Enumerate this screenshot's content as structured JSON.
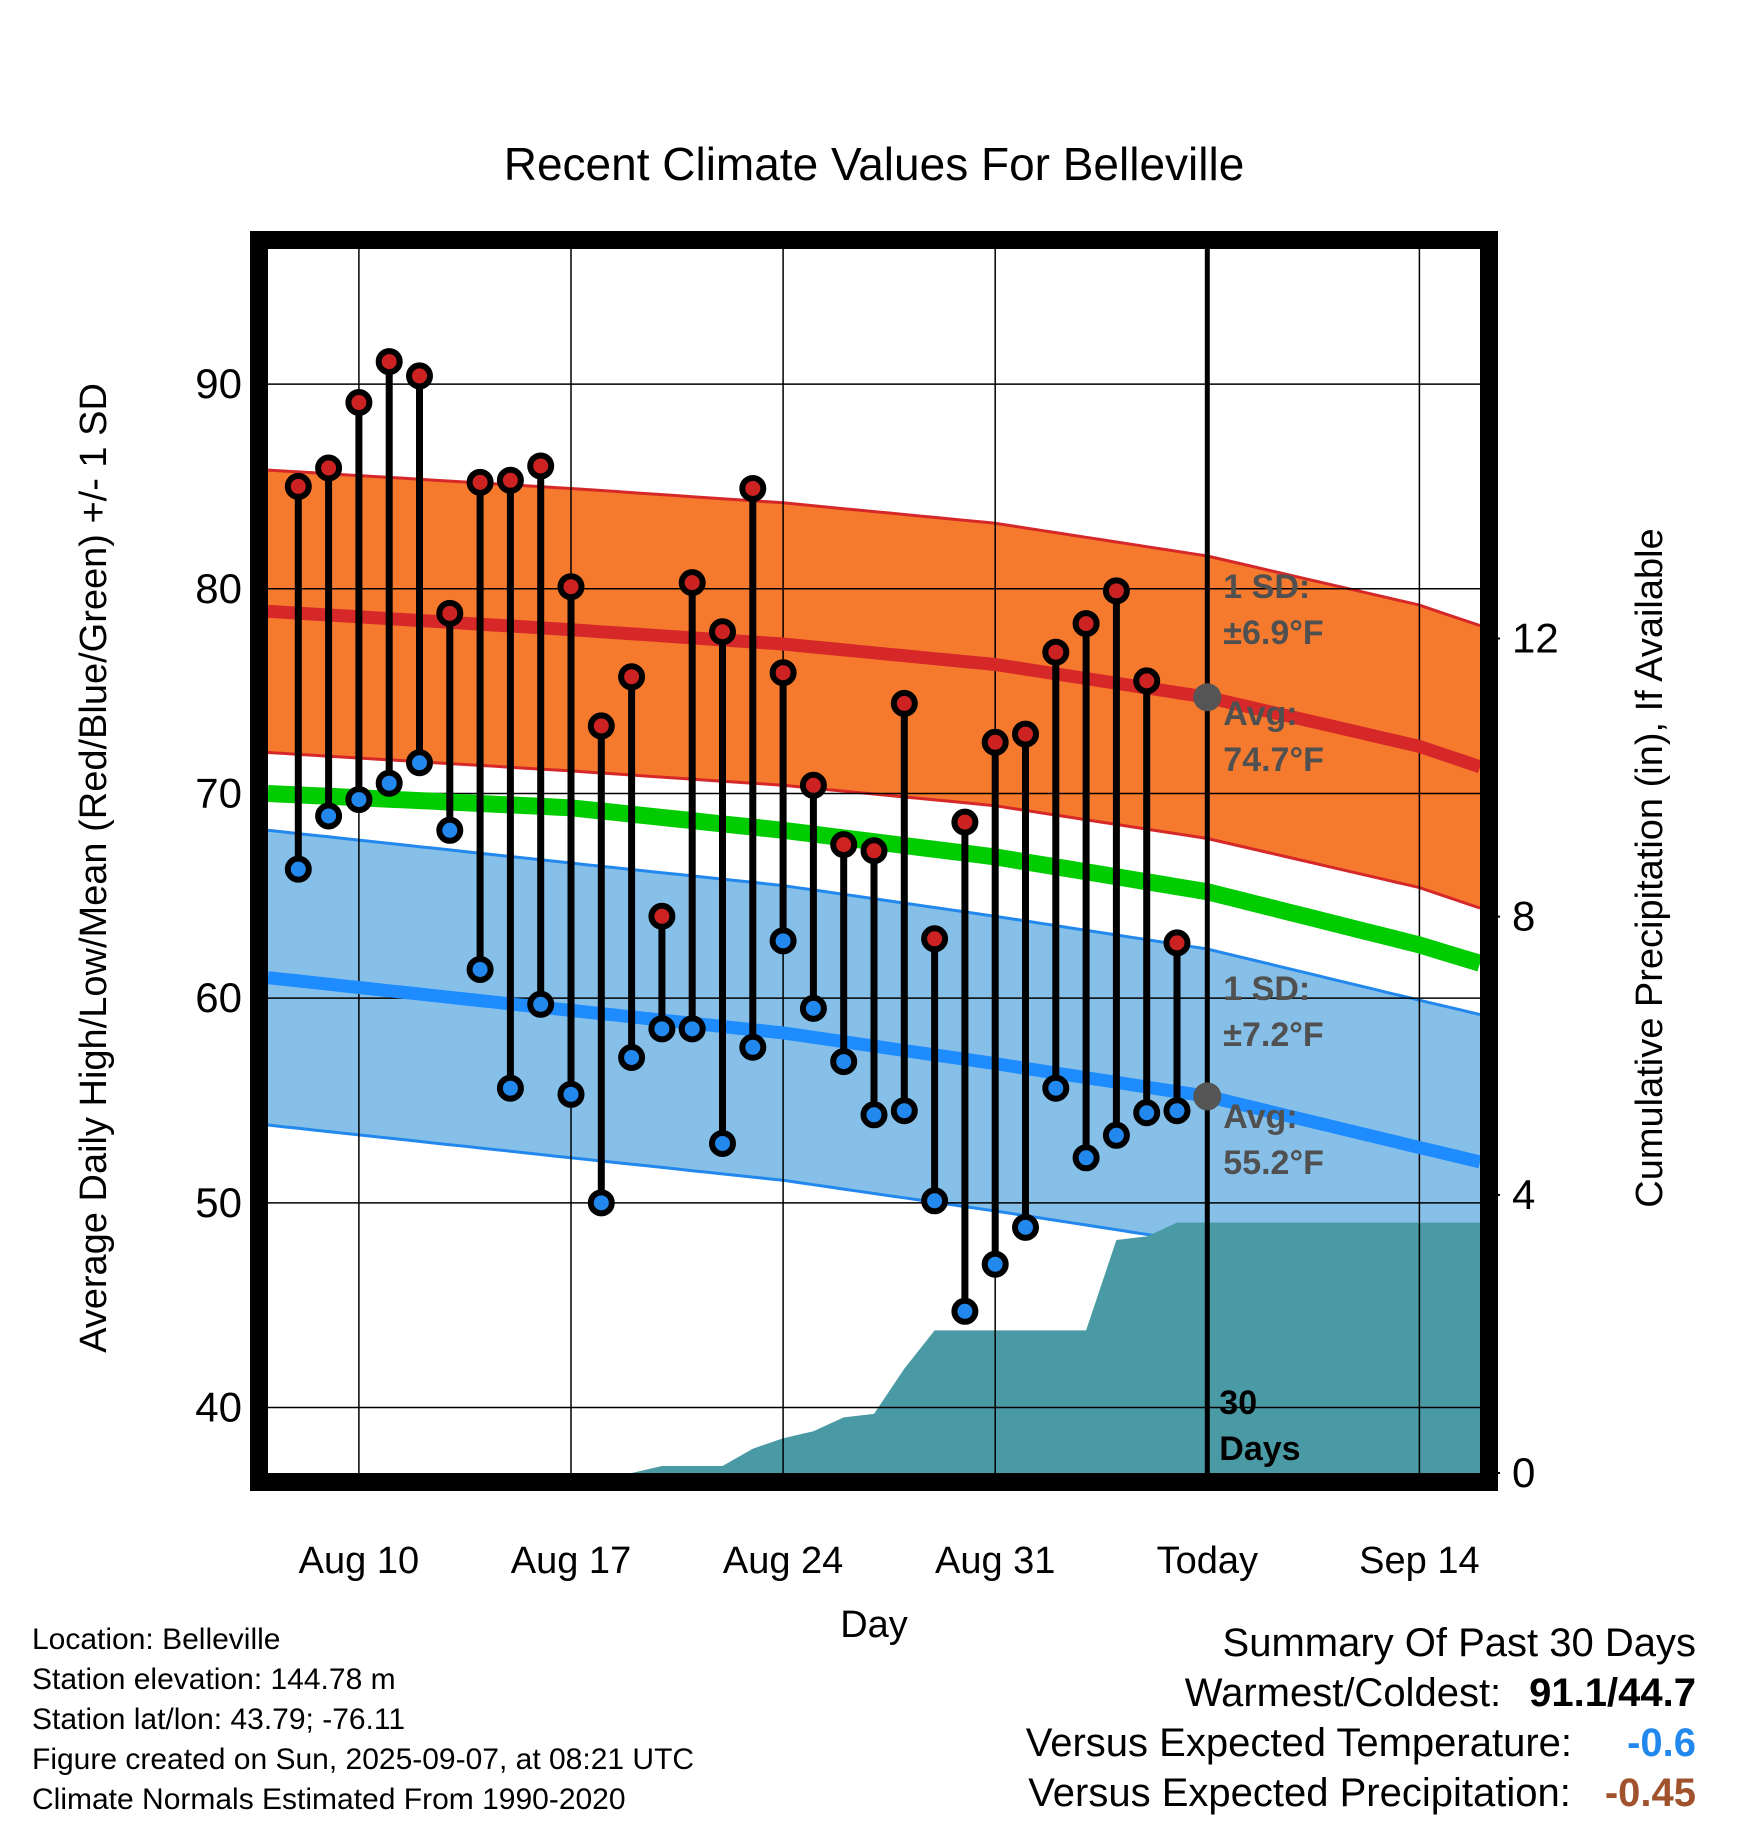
{
  "chart_data": {
    "type": "line",
    "title": "Recent Climate Values For Belleville",
    "xlabel": "Day",
    "ylabel": "Average Daily High/Low/Mean (Red/Blue/Green) +/- 1 SD",
    "y2label": "Cumulative Precipitation (in), If Available",
    "x_axis": {
      "range": [
        "Aug 7",
        "Sep 16"
      ],
      "ticks": [
        "Aug 10",
        "Aug 17",
        "Aug 24",
        "Aug 31",
        "Today",
        "Sep 14"
      ]
    },
    "ylim": [
      36.8,
      96.6
    ],
    "yticks": [
      40,
      50,
      60,
      70,
      80,
      90
    ],
    "y2lim": [
      0,
      17.6
    ],
    "y2ticks": [
      0,
      4,
      8,
      12
    ],
    "grid": true,
    "series": [
      {
        "name": "High",
        "color": "#cc2222",
        "x": [
          "Aug 8",
          "Aug 9",
          "Aug 10",
          "Aug 11",
          "Aug 12",
          "Aug 13",
          "Aug 14",
          "Aug 15",
          "Aug 16",
          "Aug 17",
          "Aug 18",
          "Aug 19",
          "Aug 20",
          "Aug 21",
          "Aug 22",
          "Aug 23",
          "Aug 24",
          "Aug 25",
          "Aug 26",
          "Aug 27",
          "Aug 28",
          "Aug 29",
          "Aug 30",
          "Aug 31",
          "Sep 1",
          "Sep 2",
          "Sep 3",
          "Sep 4",
          "Sep 5",
          "Sep 6"
        ],
        "values": [
          85.0,
          85.9,
          89.1,
          91.1,
          90.4,
          78.8,
          85.2,
          85.3,
          86.0,
          80.1,
          73.3,
          75.7,
          64.0,
          80.3,
          77.9,
          84.9,
          75.9,
          70.4,
          67.5,
          67.2,
          74.4,
          62.9,
          68.6,
          72.5,
          72.9,
          76.9,
          78.3,
          79.9,
          75.5,
          62.7
        ]
      },
      {
        "name": "Low",
        "color": "#2288ee",
        "x": [
          "Aug 8",
          "Aug 9",
          "Aug 10",
          "Aug 11",
          "Aug 12",
          "Aug 13",
          "Aug 14",
          "Aug 15",
          "Aug 16",
          "Aug 17",
          "Aug 18",
          "Aug 19",
          "Aug 20",
          "Aug 21",
          "Aug 22",
          "Aug 23",
          "Aug 24",
          "Aug 25",
          "Aug 26",
          "Aug 27",
          "Aug 28",
          "Aug 29",
          "Aug 30",
          "Aug 31",
          "Sep 1",
          "Sep 2",
          "Sep 3",
          "Sep 4",
          "Sep 5",
          "Sep 6"
        ],
        "values": [
          66.3,
          68.9,
          69.7,
          70.5,
          71.5,
          68.2,
          61.4,
          55.6,
          59.7,
          55.3,
          50.0,
          57.1,
          58.5,
          58.5,
          52.9,
          57.6,
          62.8,
          59.5,
          56.9,
          54.3,
          54.5,
          50.1,
          44.7,
          47.0,
          48.8,
          55.6,
          52.2,
          53.3,
          54.4,
          54.5
        ]
      },
      {
        "name": "Normal High",
        "color": "#cc2222",
        "x": [
          "Aug 7",
          "Aug 17",
          "Aug 24",
          "Aug 31",
          "Sep 7",
          "Sep 14",
          "Sep 16"
        ],
        "values": [
          78.9,
          78.0,
          77.3,
          76.3,
          74.7,
          72.3,
          71.3
        ],
        "sd": 6.9
      },
      {
        "name": "Normal Low",
        "color": "#2288ee",
        "x": [
          "Aug 7",
          "Aug 17",
          "Aug 24",
          "Aug 31",
          "Sep 7",
          "Sep 14",
          "Sep 16"
        ],
        "values": [
          61.0,
          59.4,
          58.3,
          56.8,
          55.2,
          52.7,
          52.0
        ],
        "sd": 7.2
      },
      {
        "name": "Normal Mean",
        "color": "#00cc00",
        "x": [
          "Aug 7",
          "Aug 17",
          "Aug 24",
          "Aug 31",
          "Sep 7",
          "Sep 14",
          "Sep 16"
        ],
        "values": [
          70.0,
          69.3,
          68.2,
          66.9,
          65.2,
          62.6,
          61.7
        ]
      },
      {
        "name": "Cumulative Precipitation",
        "color": "#4a9aa5",
        "x": [
          "Aug 7",
          "Aug 18",
          "Aug 19",
          "Aug 20",
          "Aug 21",
          "Aug 22",
          "Aug 23",
          "Aug 24",
          "Aug 25",
          "Aug 26",
          "Aug 27",
          "Aug 28",
          "Aug 29",
          "Aug 30",
          "Aug 31",
          "Sep 1",
          "Sep 2",
          "Sep 3",
          "Sep 4",
          "Sep 5",
          "Sep 6",
          "Sep 7",
          "Sep 16"
        ],
        "values": [
          0,
          0,
          0,
          0.1,
          0.1,
          0.1,
          0.35,
          0.5,
          0.6,
          0.8,
          0.85,
          1.5,
          2.05,
          2.05,
          2.05,
          2.05,
          2.05,
          2.05,
          3.35,
          3.4,
          3.6,
          3.6,
          3.6
        ]
      }
    ],
    "annotations": {
      "high_sd_line1": "1 SD:",
      "high_sd_line2": "±6.9°F",
      "high_avg_line1": "Avg:",
      "high_avg_line2": "74.7°F",
      "low_sd_line1": "1 SD:",
      "low_sd_line2": "±7.2°F",
      "low_avg_line1": "Avg:",
      "low_avg_line2": "55.2°F",
      "period_line1": "30",
      "period_line2": "Days"
    }
  },
  "station_info": {
    "location": "Location: Belleville",
    "elevation": "Station elevation: 144.78 m",
    "latlon": "Station lat/lon: 43.79; -76.11",
    "created": "Figure created on Sun, 2025-09-07, at 08:21 UTC",
    "normals": "Climate Normals Estimated From 1990-2020"
  },
  "summary": {
    "title": "Summary Of Past 30 Days",
    "warmest_coldest_label": "Warmest/Coldest:",
    "warmest_coldest_value": "91.1/44.7",
    "temp_label": "Versus Expected Temperature:",
    "temp_value": "-0.6",
    "temp_color": "#2288ee",
    "precip_label": "Versus Expected Precipitation:",
    "precip_value": "-0.45",
    "precip_color": "#a0522d"
  }
}
